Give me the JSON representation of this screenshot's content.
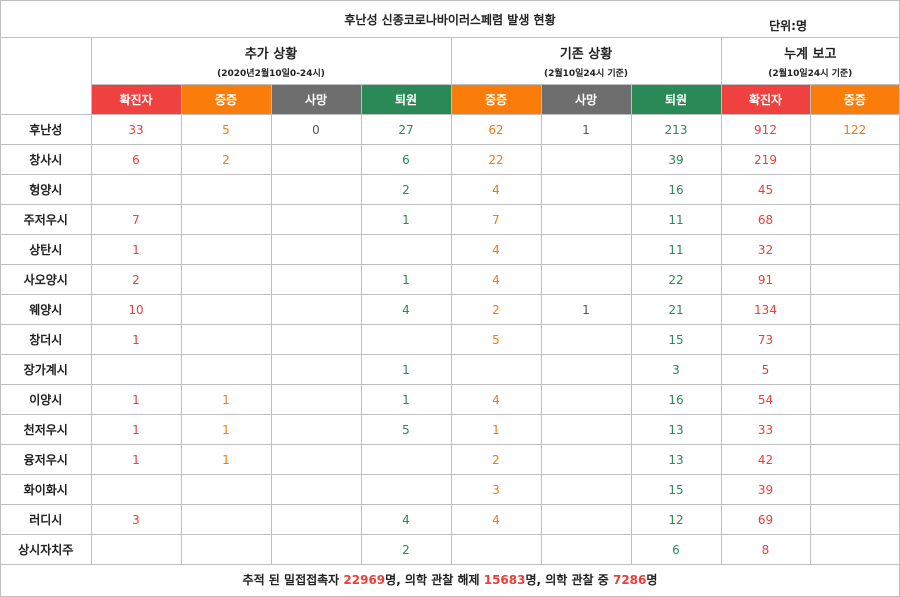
{
  "title": "후난성 신종코로나바이러스페렴 발생 현황",
  "unit": "단위:명",
  "groups": [
    {
      "title": "추가 상황",
      "sub": "(2020년2월10일0-24시)"
    },
    {
      "title": "기존 상황",
      "sub": "(2월10일24시 기준)"
    },
    {
      "title": "누계 보고",
      "sub": "(2월10일24시 기준)"
    }
  ],
  "column_headers": [
    "확진자",
    "중증",
    "사망",
    "퇴원",
    "중증",
    "사망",
    "퇴원",
    "확진자",
    "중증"
  ],
  "colors": {
    "red": "#f04141",
    "orange": "#fa7d0c",
    "gray": "#6e6e6e",
    "green": "#2a8a57",
    "red_text": "#e8403a",
    "orange_text": "#f07a12",
    "green_text": "#2a8a57"
  },
  "rows": [
    {
      "region": "후난성",
      "values": [
        "33",
        "5",
        "0",
        "27",
        "62",
        "1",
        "213",
        "912",
        "122"
      ]
    },
    {
      "region": "창사시",
      "values": [
        "6",
        "2",
        "",
        "6",
        "22",
        "",
        "39",
        "219",
        ""
      ]
    },
    {
      "region": "헝양시",
      "values": [
        "",
        "",
        "",
        "2",
        "4",
        "",
        "16",
        "45",
        ""
      ]
    },
    {
      "region": "주저우시",
      "values": [
        "7",
        "",
        "",
        "1",
        "7",
        "",
        "11",
        "68",
        ""
      ]
    },
    {
      "region": "상탄시",
      "values": [
        "1",
        "",
        "",
        "",
        "4",
        "",
        "11",
        "32",
        ""
      ]
    },
    {
      "region": "사오양시",
      "values": [
        "2",
        "",
        "",
        "1",
        "4",
        "",
        "22",
        "91",
        ""
      ]
    },
    {
      "region": "웨양시",
      "values": [
        "10",
        "",
        "",
        "4",
        "2",
        "1",
        "21",
        "134",
        ""
      ]
    },
    {
      "region": "창더시",
      "values": [
        "1",
        "",
        "",
        "",
        "5",
        "",
        "15",
        "73",
        ""
      ]
    },
    {
      "region": "장가계시",
      "values": [
        "",
        "",
        "",
        "1",
        "",
        "",
        "3",
        "5",
        ""
      ]
    },
    {
      "region": "이양시",
      "values": [
        "1",
        "1",
        "",
        "1",
        "4",
        "",
        "16",
        "54",
        ""
      ]
    },
    {
      "region": "천저우시",
      "values": [
        "1",
        "1",
        "",
        "5",
        "1",
        "",
        "13",
        "33",
        ""
      ]
    },
    {
      "region": "융저우시",
      "values": [
        "1",
        "1",
        "",
        "",
        "2",
        "",
        "13",
        "42",
        ""
      ]
    },
    {
      "region": "화이화시",
      "values": [
        "",
        "",
        "",
        "",
        "3",
        "",
        "15",
        "39",
        ""
      ]
    },
    {
      "region": "러디시",
      "values": [
        "3",
        "",
        "",
        "4",
        "4",
        "",
        "12",
        "69",
        ""
      ]
    },
    {
      "region": "상시자치주",
      "values": [
        "",
        "",
        "",
        "2",
        "",
        "",
        "6",
        "8",
        ""
      ]
    }
  ],
  "footer": {
    "part1": "추적 된 밀접접촉자 ",
    "num1": "22969",
    "part2": "명, 의학 관찰 해제 ",
    "num2": "15683",
    "part3": "명, 의학 관찰 중 ",
    "num3": "7286",
    "part4": "명"
  }
}
